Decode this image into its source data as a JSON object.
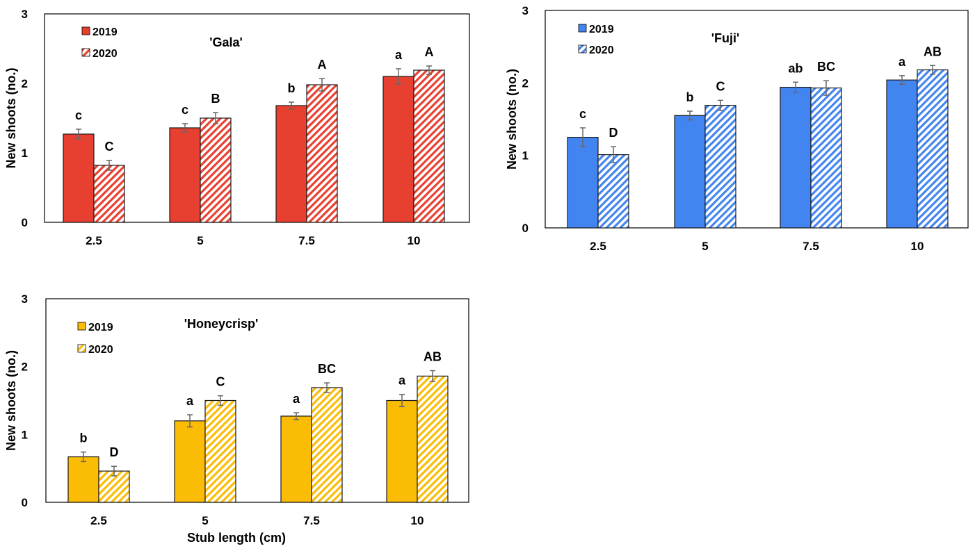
{
  "chart_data": [
    {
      "type": "bar",
      "title": "'Gala'",
      "xlabel": "",
      "ylabel": "New shoots (no.)",
      "ylim": [
        0,
        3
      ],
      "yticks": [
        "0",
        "1",
        "2",
        "3"
      ],
      "categories": [
        "2.5",
        "5",
        "7.5",
        "10"
      ],
      "legend_position": "top-left",
      "colors": {
        "primary": "#e84030"
      },
      "series": [
        {
          "name": "2019",
          "pattern": "solid",
          "values": [
            1.27,
            1.36,
            1.68,
            2.1
          ],
          "errors": [
            0.07,
            0.06,
            0.05,
            0.11
          ],
          "letters": [
            "c",
            "c",
            "b",
            "a"
          ]
        },
        {
          "name": "2020",
          "pattern": "hatched",
          "values": [
            0.82,
            1.5,
            1.98,
            2.19
          ],
          "errors": [
            0.07,
            0.08,
            0.09,
            0.06
          ],
          "letters": [
            "C",
            "B",
            "A",
            "A"
          ]
        }
      ]
    },
    {
      "type": "bar",
      "title": "'Fuji'",
      "xlabel": "",
      "ylabel": "New shoots (no.)",
      "ylim": [
        0,
        3
      ],
      "yticks": [
        "0",
        "1",
        "2",
        "3"
      ],
      "categories": [
        "2.5",
        "5",
        "7.5",
        "10"
      ],
      "legend_position": "top-left",
      "colors": {
        "primary": "#4285f0"
      },
      "series": [
        {
          "name": "2019",
          "pattern": "solid",
          "values": [
            1.25,
            1.55,
            1.94,
            2.04
          ],
          "errors": [
            0.13,
            0.06,
            0.07,
            0.06
          ],
          "letters": [
            "c",
            "b",
            "ab",
            "a"
          ]
        },
        {
          "name": "2020",
          "pattern": "hatched",
          "values": [
            1.01,
            1.69,
            1.93,
            2.18
          ],
          "errors": [
            0.11,
            0.07,
            0.1,
            0.06
          ],
          "letters": [
            "D",
            "C",
            "BC",
            "AB"
          ]
        }
      ]
    },
    {
      "type": "bar",
      "title": "'Honeycrisp'",
      "xlabel": "Stub length (cm)",
      "ylabel": "New shoots (no.)",
      "ylim": [
        0,
        3
      ],
      "yticks": [
        "0",
        "1",
        "2",
        "3"
      ],
      "categories": [
        "2.5",
        "5",
        "7.5",
        "10"
      ],
      "legend_position": "top-left",
      "colors": {
        "primary": "#fbbc05"
      },
      "series": [
        {
          "name": "2019",
          "pattern": "solid",
          "values": [
            0.67,
            1.2,
            1.27,
            1.5
          ],
          "errors": [
            0.07,
            0.09,
            0.05,
            0.09
          ],
          "letters": [
            "b",
            "a",
            "a",
            "a"
          ]
        },
        {
          "name": "2020",
          "pattern": "hatched",
          "values": [
            0.46,
            1.5,
            1.69,
            1.86
          ],
          "errors": [
            0.07,
            0.07,
            0.07,
            0.08
          ],
          "letters": [
            "D",
            "C",
            "BC",
            "AB"
          ]
        }
      ]
    }
  ]
}
